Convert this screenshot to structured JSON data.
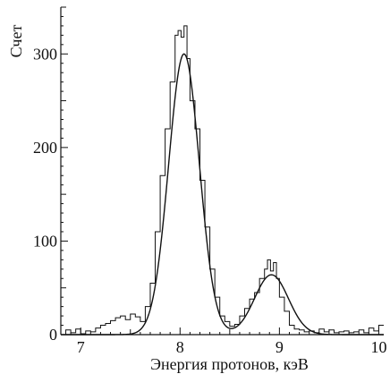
{
  "chart_data": {
    "type": "line",
    "xlabel": "Энергия протонов, кэВ",
    "ylabel": "Счет",
    "xlim": [
      6.8,
      10.05
    ],
    "ylim": [
      0,
      350
    ],
    "xticks": [
      7,
      8,
      9,
      10
    ],
    "yticks": [
      0,
      100,
      200,
      300
    ],
    "xtick_labels": [
      "7",
      "8",
      "9",
      "10"
    ],
    "ytick_labels": [
      "0",
      "100",
      "200",
      "300"
    ],
    "grid": false,
    "series": [
      {
        "type": "step",
        "x": [
          6.8,
          6.85,
          6.9,
          6.95,
          7.0,
          7.05,
          7.1,
          7.15,
          7.2,
          7.25,
          7.3,
          7.35,
          7.4,
          7.45,
          7.5,
          7.55,
          7.6,
          7.65,
          7.7,
          7.75,
          7.8,
          7.85,
          7.9,
          7.95,
          7.98,
          8.01,
          8.04,
          8.07,
          8.1,
          8.15,
          8.2,
          8.25,
          8.3,
          8.35,
          8.4,
          8.45,
          8.5,
          8.55,
          8.6,
          8.65,
          8.7,
          8.75,
          8.8,
          8.85,
          8.88,
          8.91,
          8.94,
          8.97,
          9.0,
          9.05,
          9.1,
          9.15,
          9.2,
          9.25,
          9.3,
          9.35,
          9.4,
          9.45,
          9.5,
          9.55,
          9.6,
          9.65,
          9.7,
          9.75,
          9.8,
          9.85,
          9.9,
          9.95,
          10.0
        ],
        "y": [
          0,
          5,
          2,
          6,
          1,
          4,
          3,
          7,
          10,
          12,
          15,
          18,
          20,
          16,
          22,
          19,
          14,
          30,
          55,
          110,
          170,
          220,
          270,
          320,
          325,
          318,
          330,
          295,
          250,
          220,
          165,
          115,
          70,
          40,
          20,
          14,
          9,
          11,
          20,
          28,
          38,
          45,
          60,
          70,
          80,
          68,
          77,
          60,
          40,
          25,
          10,
          6,
          5,
          3,
          4,
          2,
          6,
          3,
          5,
          2,
          3,
          4,
          2,
          3,
          5,
          2,
          7,
          4,
          10
        ]
      },
      {
        "type": "fit",
        "peaks": [
          {
            "center": 8.04,
            "amplitude": 300,
            "sigma": 0.155
          },
          {
            "center": 8.92,
            "amplitude": 64,
            "sigma": 0.17
          }
        ]
      }
    ]
  }
}
